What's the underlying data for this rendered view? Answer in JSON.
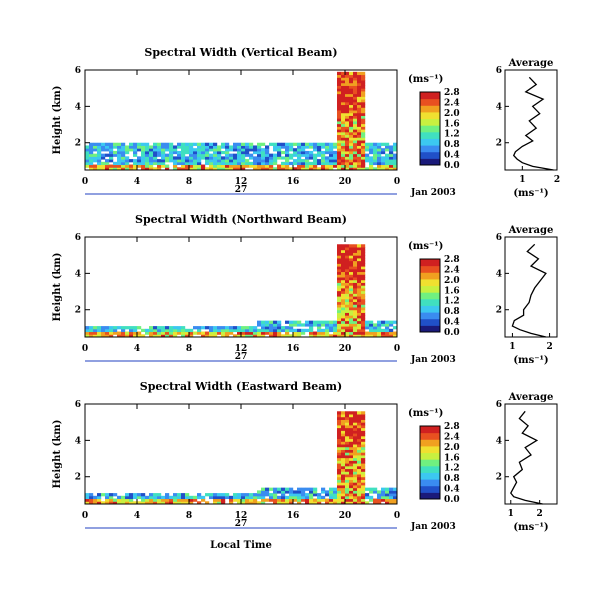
{
  "colors": {
    "colormap": [
      "#1a1a7a",
      "#2050c8",
      "#3a8cf0",
      "#3cc8f0",
      "#40e0c0",
      "#70f080",
      "#c8f040",
      "#f0e030",
      "#f0a020",
      "#e85020",
      "#d02020"
    ],
    "line": "#000000",
    "axis_blue": "#2040c0"
  },
  "chart_data": [
    {
      "type": "heatmap",
      "title": "Spectral Width (Vertical Beam)",
      "ylabel": "Height (km)",
      "ylim": [
        0.5,
        6
      ],
      "yticks": [
        "2",
        "4",
        "6"
      ],
      "xticks": [
        "0",
        "4",
        "8",
        "12",
        "16",
        "20",
        "0"
      ],
      "xlim": [
        0,
        24
      ],
      "date_day": "27",
      "date_label": "Jan 2003",
      "colorbar": {
        "unit": "(ms⁻¹)",
        "ticks": [
          "0.0",
          "0.4",
          "0.8",
          "1.2",
          "1.6",
          "2.0",
          "2.4",
          "2.8"
        ],
        "range": [
          0,
          2.8
        ]
      },
      "average": {
        "title": "Average",
        "xlabel": "(ms⁻¹)",
        "xticks": [
          "1",
          "2"
        ],
        "xlim": [
          0.5,
          2
        ],
        "yticks": [
          "2",
          "4",
          "6"
        ],
        "profile_height_km": [
          0.5,
          0.7,
          0.9,
          1.1,
          1.3,
          1.5,
          1.8,
          2.1,
          2.4,
          2.8,
          3.2,
          3.6,
          4.0,
          4.4,
          4.8,
          5.2,
          5.6
        ],
        "profile_width": [
          1.9,
          1.3,
          1.0,
          0.85,
          0.75,
          0.8,
          1.0,
          1.3,
          1.1,
          1.4,
          1.2,
          1.5,
          1.3,
          1.6,
          1.1,
          1.4,
          1.2
        ]
      }
    },
    {
      "type": "heatmap",
      "title": "Spectral Width (Northward Beam)",
      "ylabel": "Height (km)",
      "ylim": [
        0.5,
        6
      ],
      "yticks": [
        "2",
        "4",
        "6"
      ],
      "xticks": [
        "0",
        "4",
        "8",
        "12",
        "16",
        "20",
        "0"
      ],
      "xlim": [
        0,
        24
      ],
      "date_day": "27",
      "date_label": "Jan 2003",
      "colorbar": {
        "unit": "(ms⁻¹)",
        "ticks": [
          "0.0",
          "0.4",
          "0.8",
          "1.2",
          "1.6",
          "2.0",
          "2.4",
          "2.8"
        ],
        "range": [
          0,
          2.8
        ]
      },
      "average": {
        "title": "Average",
        "xlabel": "(ms⁻¹)",
        "xticks": [
          "1",
          "2"
        ],
        "xlim": [
          0.8,
          2.2
        ],
        "yticks": [
          "2",
          "4",
          "6"
        ],
        "profile_height_km": [
          0.5,
          0.7,
          0.9,
          1.1,
          1.4,
          1.7,
          2.0,
          2.4,
          2.8,
          3.2,
          3.6,
          4.0,
          4.4,
          4.8,
          5.2,
          5.6
        ],
        "profile_width": [
          1.9,
          1.5,
          1.2,
          1.0,
          1.05,
          1.3,
          1.3,
          1.45,
          1.5,
          1.6,
          1.75,
          1.9,
          1.5,
          1.7,
          1.4,
          1.6
        ]
      }
    },
    {
      "type": "heatmap",
      "title": "Spectral Width (Eastward Beam)",
      "ylabel": "Height (km)",
      "ylim": [
        0.5,
        6
      ],
      "yticks": [
        "2",
        "4",
        "6"
      ],
      "xticks": [
        "0",
        "4",
        "8",
        "12",
        "16",
        "20",
        "0"
      ],
      "xlim": [
        0,
        24
      ],
      "date_day": "27",
      "date_label": "Jan 2003",
      "xlabel": "Local Time",
      "colorbar": {
        "unit": "(ms⁻¹)",
        "ticks": [
          "0.0",
          "0.4",
          "0.8",
          "1.2",
          "1.6",
          "2.0",
          "2.4",
          "2.8"
        ],
        "range": [
          0,
          2.8
        ]
      },
      "average": {
        "title": "Average",
        "xlabel": "(ms⁻¹)",
        "xticks": [
          "1",
          "2"
        ],
        "xlim": [
          0.8,
          2.6
        ],
        "yticks": [
          "2",
          "4",
          "6"
        ],
        "profile_height_km": [
          0.5,
          0.7,
          0.9,
          1.1,
          1.4,
          1.7,
          2.0,
          2.4,
          2.8,
          3.2,
          3.6,
          4.0,
          4.4,
          4.8,
          5.2,
          5.6
        ],
        "profile_width": [
          2.1,
          1.5,
          1.1,
          1.0,
          1.1,
          1.2,
          1.1,
          1.4,
          1.3,
          1.7,
          1.5,
          1.9,
          1.4,
          1.6,
          1.3,
          1.5
        ]
      }
    }
  ]
}
